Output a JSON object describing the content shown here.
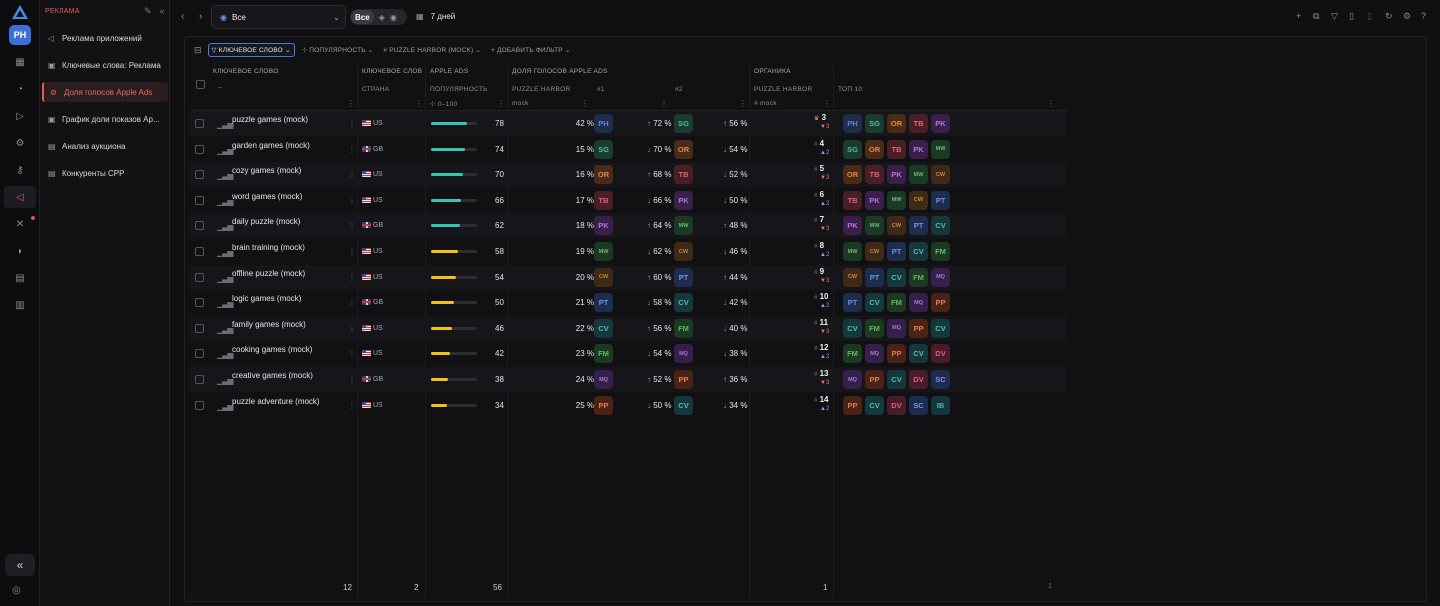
{
  "rail": {
    "avatar": "PH",
    "icons": [
      "apps-icon",
      "chart-icon",
      "rocket-icon",
      "settings-icon",
      "key-icon",
      "megaphone-icon",
      "tools-icon",
      "signal-icon",
      "report-icon",
      "calculator-icon"
    ]
  },
  "sidebar": {
    "title": "РЕКЛАМА",
    "items": [
      {
        "label": "Реклама приложений",
        "icon": "megaphone-icon"
      },
      {
        "label": "Ключевые слова: Реклама",
        "icon": "keywords-icon"
      },
      {
        "label": "Доля голосов Apple Ads",
        "icon": "share-icon",
        "active": true
      },
      {
        "label": "График доли показов Ap...",
        "icon": "chart-icon"
      },
      {
        "label": "Анализ аукциона",
        "icon": "auction-icon"
      },
      {
        "label": "Конкуренты CPP",
        "icon": "competitors-icon"
      }
    ]
  },
  "topbar": {
    "scope": "Все",
    "segment": "Все",
    "period": "7 дней",
    "right_icons": [
      "plus-icon",
      "collection-icon",
      "filter-icon",
      "file-icon",
      "trash-icon",
      "refresh-icon",
      "settings-icon",
      "help-icon"
    ]
  },
  "filters": {
    "chips": [
      "КЛЮЧЕВОЕ СЛОВО",
      "ПОПУЛЯРНОСТЬ",
      "# PUZZLE HARBOR (MOCK)",
      "+ ДОБАВИТЬ ФИЛЬТР"
    ]
  },
  "columns": {
    "keyword": "КЛЮЧЕВОЕ СЛОВО",
    "keyword_sort": "–",
    "keyword_group": "КЛЮЧЕВОЕ СЛОВ",
    "country": "СТРАНА",
    "apple_ads": "APPLE ADS",
    "popularity": "ПОПУЛЯРНОСТЬ",
    "popularity_range": "0–100",
    "share_group": "ДОЛЯ ГОЛОСОВ APPLE ADS",
    "puzzle_harbor": "PUZZLE HARBOR",
    "mock": "mock",
    "first": "#1",
    "second": "#2",
    "organic": "ОРГАНИКА",
    "organic_app": "PUZZLE HARBOR",
    "organic_mock": "mock",
    "top10": "ТОП 10"
  },
  "rows": [
    {
      "keyword": "puzzle games (mock)",
      "country": "US",
      "flag": "us",
      "popularity": 78,
      "share": "42 %",
      "share_app": "PH",
      "t1": "72 %",
      "t1_dir": "up",
      "t1_app": "SG",
      "t2": "56 %",
      "t2_dir": "up",
      "rank": "3",
      "rank_crown": true,
      "delta": "3",
      "delta_dir": "dn",
      "top": [
        "PH",
        "SG",
        "OR",
        "TB",
        "PK"
      ]
    },
    {
      "keyword": "garden games (mock)",
      "country": "GB",
      "flag": "gb",
      "popularity": 74,
      "share": "15 %",
      "share_app": "SG",
      "t1": "70 %",
      "t1_dir": "dn",
      "t1_app": "OR",
      "t2": "54 %",
      "t2_dir": "dn",
      "rank": "4",
      "rank_crown": false,
      "delta": "2",
      "delta_dir": "up",
      "top": [
        "SG",
        "OR",
        "TB",
        "PK",
        "MW"
      ]
    },
    {
      "keyword": "cozy games (mock)",
      "country": "US",
      "flag": "us",
      "popularity": 70,
      "share": "16 %",
      "share_app": "OR",
      "t1": "68 %",
      "t1_dir": "up",
      "t1_app": "TB",
      "t2": "52 %",
      "t2_dir": "dn",
      "rank": "5",
      "rank_crown": false,
      "delta": "3",
      "delta_dir": "dn",
      "top": [
        "OR",
        "TB",
        "PK",
        "MW",
        "CW"
      ]
    },
    {
      "keyword": "word games (mock)",
      "country": "US",
      "flag": "us",
      "popularity": 66,
      "share": "17 %",
      "share_app": "TB",
      "t1": "66 %",
      "t1_dir": "dn",
      "t1_app": "PK",
      "t2": "50 %",
      "t2_dir": "dn",
      "rank": "6",
      "rank_crown": false,
      "delta": "2",
      "delta_dir": "up",
      "top": [
        "TB",
        "PK",
        "MW",
        "CW",
        "PT"
      ]
    },
    {
      "keyword": "daily puzzle (mock)",
      "country": "GB",
      "flag": "gb",
      "popularity": 62,
      "share": "18 %",
      "share_app": "PK",
      "t1": "64 %",
      "t1_dir": "up",
      "t1_app": "MW",
      "t2": "48 %",
      "t2_dir": "up",
      "rank": "7",
      "rank_crown": false,
      "delta": "3",
      "delta_dir": "dn",
      "top": [
        "PK",
        "MW",
        "CW",
        "PT",
        "CV"
      ]
    },
    {
      "keyword": "brain training (mock)",
      "country": "US",
      "flag": "us",
      "popularity": 58,
      "share": "19 %",
      "share_app": "MW",
      "t1": "62 %",
      "t1_dir": "dn",
      "t1_app": "CW",
      "t2": "46 %",
      "t2_dir": "dn",
      "rank": "8",
      "rank_crown": false,
      "delta": "2",
      "delta_dir": "up",
      "top": [
        "MW",
        "CW",
        "PT",
        "CV",
        "FM"
      ]
    },
    {
      "keyword": "offline puzzle (mock)",
      "country": "US",
      "flag": "us",
      "popularity": 54,
      "share": "20 %",
      "share_app": "CW",
      "t1": "60 %",
      "t1_dir": "up",
      "t1_app": "PT",
      "t2": "44 %",
      "t2_dir": "up",
      "rank": "9",
      "rank_crown": false,
      "delta": "3",
      "delta_dir": "dn",
      "top": [
        "CW",
        "PT",
        "CV",
        "FM",
        "MQ"
      ]
    },
    {
      "keyword": "logic games (mock)",
      "country": "GB",
      "flag": "gb",
      "popularity": 50,
      "share": "21 %",
      "share_app": "PT",
      "t1": "58 %",
      "t1_dir": "dn",
      "t1_app": "CV",
      "t2": "42 %",
      "t2_dir": "dn",
      "rank": "10",
      "rank_crown": false,
      "delta": "2",
      "delta_dir": "up",
      "top": [
        "PT",
        "CV",
        "FM",
        "MQ",
        "PP"
      ]
    },
    {
      "keyword": "family games (mock)",
      "country": "US",
      "flag": "us",
      "popularity": 46,
      "share": "22 %",
      "share_app": "CV",
      "t1": "56 %",
      "t1_dir": "up",
      "t1_app": "FM",
      "t2": "40 %",
      "t2_dir": "dn",
      "rank": "11",
      "rank_crown": false,
      "delta": "3",
      "delta_dir": "dn",
      "top": [
        "CV",
        "FM",
        "MQ",
        "PP",
        "CV"
      ]
    },
    {
      "keyword": "cooking games (mock)",
      "country": "US",
      "flag": "us",
      "popularity": 42,
      "share": "23 %",
      "share_app": "FM",
      "t1": "54 %",
      "t1_dir": "dn",
      "t1_app": "MQ",
      "t2": "38 %",
      "t2_dir": "dn",
      "rank": "12",
      "rank_crown": false,
      "delta": "2",
      "delta_dir": "up",
      "top": [
        "FM",
        "MQ",
        "PP",
        "CV",
        "DV"
      ]
    },
    {
      "keyword": "creative games (mock)",
      "country": "GB",
      "flag": "gb",
      "popularity": 38,
      "share": "24 %",
      "share_app": "MQ",
      "t1": "52 %",
      "t1_dir": "up",
      "t1_app": "PP",
      "t2": "36 %",
      "t2_dir": "up",
      "rank": "13",
      "rank_crown": false,
      "delta": "3",
      "delta_dir": "dn",
      "top": [
        "MQ",
        "PP",
        "CV",
        "DV",
        "SC"
      ]
    },
    {
      "keyword": "puzzle adventure (mock)",
      "country": "US",
      "flag": "us",
      "popularity": 34,
      "share": "25 %",
      "share_app": "PP",
      "t1": "50 %",
      "t1_dir": "dn",
      "t1_app": "CV",
      "t2": "34 %",
      "t2_dir": "dn",
      "rank": "14",
      "rank_crown": false,
      "delta": "2",
      "delta_dir": "up",
      "top": [
        "PP",
        "CV",
        "DV",
        "SC",
        "IB"
      ]
    }
  ],
  "app_colors": {
    "PH": [
      "#1f2c4a",
      "#5f84d8"
    ],
    "SG": [
      "#1b3a30",
      "#4fbf8e"
    ],
    "OR": [
      "#4a2a18",
      "#e08a3e"
    ],
    "TB": [
      "#4a1e26",
      "#e06473"
    ],
    "PK": [
      "#3a1f4a",
      "#b077e0"
    ],
    "MW": [
      "#1b3a26",
      "#6fb86f"
    ],
    "CW": [
      "#3e2a16",
      "#c98a44"
    ],
    "PT": [
      "#1e2c4e",
      "#6f94ea"
    ],
    "CV": [
      "#16383a",
      "#4fbdbd"
    ],
    "FM": [
      "#1c3a22",
      "#62b46a"
    ],
    "MQ": [
      "#34204a",
      "#a77ad8"
    ],
    "PP": [
      "#4a2216",
      "#e07c52"
    ],
    "DV": [
      "#4a1c2a",
      "#de5f7a"
    ],
    "SC": [
      "#1e2a4e",
      "#7b94e8"
    ],
    "IB": [
      "#16363e",
      "#52b3c2"
    ]
  },
  "popularity_colors": {
    "high": "#33c6b3",
    "mid": "#f2c21a"
  },
  "footer": {
    "keywords": "12",
    "countries": "2",
    "popularity": "56",
    "organic": "1",
    "top": "1"
  }
}
